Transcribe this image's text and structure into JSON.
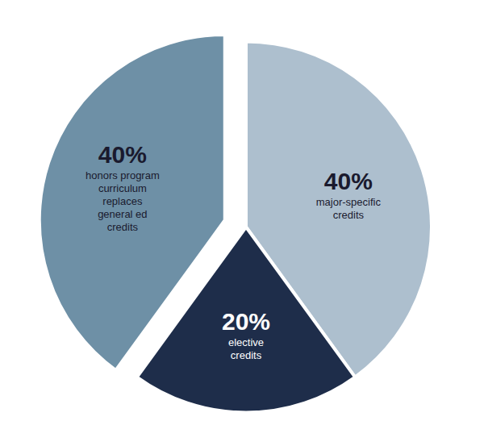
{
  "chart_data": {
    "type": "pie",
    "categories": [
      "major-specific\ncredits",
      "elective\ncredits",
      "honors program\ncurriculum\nreplaces\ngeneral ed\ncredits"
    ],
    "values": [
      40,
      20,
      40
    ],
    "value_labels": [
      "40%",
      "20%",
      "40%"
    ],
    "data_labels": true,
    "colors": [
      "#adbfce",
      "#1e2d4a",
      "#6e90a6"
    ],
    "label_colors": [
      "#1a1a2e",
      "#ffffff",
      "#1a1a2e"
    ]
  }
}
